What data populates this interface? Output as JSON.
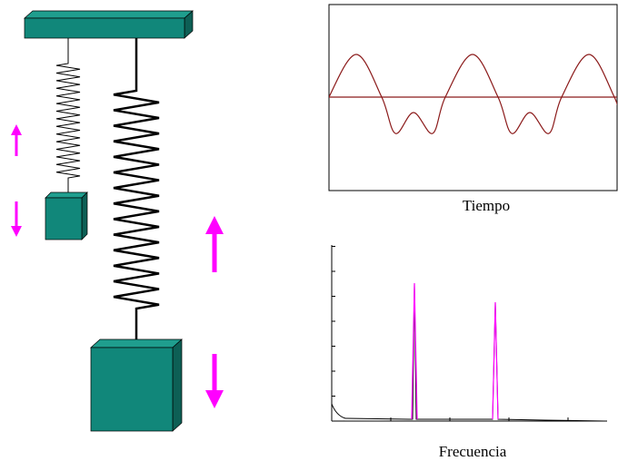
{
  "plots": {
    "time_label": "Tiempo",
    "frequency_label": "Frecuencia"
  }
}
